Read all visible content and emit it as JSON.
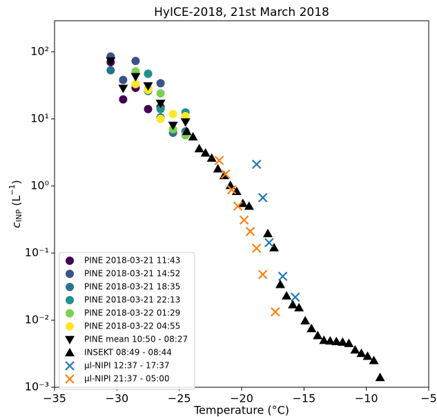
{
  "chart_data": {
    "type": "scatter",
    "title": "HyICE-2018, 21st March 2018",
    "xlabel": "Temperature (°C)",
    "ylabel": [
      "c",
      "INP",
      " (L",
      "−1",
      ")"
    ],
    "log_y": true,
    "xlim": [
      -35,
      -5
    ],
    "xticks": [
      {
        "value": -35,
        "label": "−35"
      },
      {
        "value": -30,
        "label": "−30"
      },
      {
        "value": -25,
        "label": "−25"
      },
      {
        "value": -20,
        "label": "−20"
      },
      {
        "value": -15,
        "label": "−15"
      },
      {
        "value": -10,
        "label": "−10"
      },
      {
        "value": -5,
        "label": "−5"
      }
    ],
    "ylim": [
      0.001,
      290
    ],
    "yticks": [
      {
        "value": 0.001,
        "label": "10⁻³"
      },
      {
        "value": 0.01,
        "label": "10⁻²"
      },
      {
        "value": 0.1,
        "label": "10⁻¹"
      },
      {
        "value": 1,
        "label": "10⁰"
      },
      {
        "value": 10,
        "label": "10¹"
      },
      {
        "value": 100,
        "label": "10²"
      }
    ],
    "legend": "lower left",
    "series": [
      {
        "name": "PINE 2018-03-21 11:43",
        "color": "#440154",
        "marker": "circle",
        "x": [
          -30.5,
          -29.5,
          -28.5,
          -27.5,
          -26.5
        ],
        "values": [
          70,
          19.5,
          29,
          14,
          15
        ]
      },
      {
        "name": "PINE 2018-03-21 14:52",
        "color": "#3b528b",
        "marker": "circle",
        "x": [
          -30.5,
          -29.5,
          -28.5,
          -27.5,
          -26.5
        ],
        "values": [
          85,
          38,
          73,
          47,
          34
        ]
      },
      {
        "name": "PINE 2018-03-21 18:35",
        "color": "#2c728e",
        "marker": "circle",
        "x": [
          -30.5,
          -27.5,
          -26.5,
          -25.5,
          -24.5
        ],
        "values": [
          53,
          26,
          10.5,
          6.2,
          6.5
        ]
      },
      {
        "name": "PINE 2018-03-21 22:13",
        "color": "#21918c",
        "marker": "circle",
        "x": [
          -27.5,
          -26.5,
          -24.5
        ],
        "values": [
          47,
          14,
          12.5
        ]
      },
      {
        "name": "PINE 2018-03-22 01:29",
        "color": "#7ad151",
        "marker": "circle",
        "x": [
          -28.5,
          -27.5,
          -26.5,
          -25.5,
          -24.5
        ],
        "values": [
          51,
          28,
          24,
          7,
          5.7
        ]
      },
      {
        "name": "PINE 2018-03-22 04:55",
        "color": "#fde725",
        "marker": "circle",
        "x": [
          -28.5,
          -27.5,
          -26.5,
          -25.5,
          -24.5
        ],
        "values": [
          33,
          27,
          10,
          11.8,
          11
        ]
      },
      {
        "name": "PINE mean 10:50 - 08:27",
        "color": "#000000",
        "marker": "triangle-down",
        "x": [
          -30.5,
          -29.5,
          -28.5,
          -27.5,
          -26.5,
          -25.5,
          -24.5
        ],
        "values": [
          73,
          28.5,
          42.5,
          31,
          17,
          8,
          9
        ]
      },
      {
        "name": "INSEKT 08:49 - 08:44",
        "color": "#000000",
        "marker": "triangle-up",
        "x": [
          -24.4,
          -23.9,
          -23.4,
          -22.9,
          -22.4,
          -21.9,
          -21.4,
          -20.9,
          -20.4,
          -19.9,
          -19.4,
          -17.9,
          -17.4,
          -16.9,
          -16.4,
          -15.9,
          -15.4,
          -14.9,
          -14.4,
          -13.9,
          -13.4,
          -12.9,
          -12.4,
          -11.9,
          -11.4,
          -10.9,
          -10.4,
          -9.9,
          -9.4,
          -8.9
        ],
        "values": [
          6.5,
          5.4,
          3.6,
          3.1,
          2.6,
          1.8,
          1.43,
          1.02,
          0.83,
          0.55,
          0.5,
          0.195,
          0.12,
          0.034,
          0.023,
          0.017,
          0.0153,
          0.0098,
          0.0075,
          0.0059,
          0.005,
          0.0049,
          0.0048,
          0.0047,
          0.0045,
          0.0036,
          0.0032,
          0.0029,
          0.0025,
          0.0014
        ]
      },
      {
        "name": "µl-NIPI 12:37 - 17:37",
        "color": "#1f77b4",
        "marker": "x",
        "x": [
          -18.8,
          -18.3,
          -17.8,
          -16.7,
          -15.7
        ],
        "values": [
          2.1,
          0.67,
          0.143,
          0.045,
          0.022
        ]
      },
      {
        "name": "µl-NIPI 21:37 - 05:00",
        "color": "#ff7f0e",
        "marker": "x",
        "x": [
          -21.8,
          -21.3,
          -20.8,
          -20.3,
          -19.8,
          -19.3,
          -18.8,
          -18.3,
          -17.3
        ],
        "values": [
          2.4,
          1.5,
          0.88,
          0.5,
          0.31,
          0.21,
          0.118,
          0.048,
          0.0133
        ]
      }
    ]
  }
}
